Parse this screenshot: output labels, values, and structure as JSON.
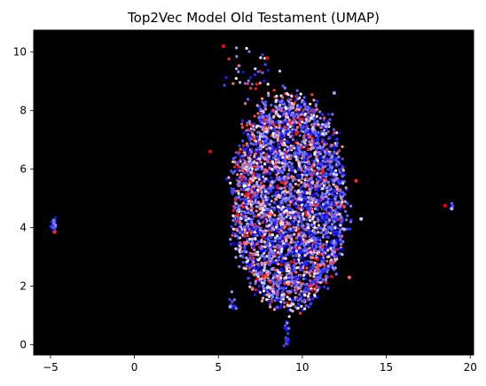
{
  "chart_data": {
    "type": "scatter",
    "title": "Top2Vec Model Old Testament (UMAP)",
    "xlabel": "",
    "ylabel": "",
    "xlim": [
      -6,
      20.2
    ],
    "ylim": [
      -0.35,
      10.75
    ],
    "grid": false,
    "legend": "none",
    "background_color": "#000000",
    "colormap": "bwr",
    "x_ticks": [
      -5,
      0,
      5,
      10,
      15,
      20
    ],
    "x_tick_labels": [
      "−5",
      "0",
      "5",
      "10",
      "15",
      "20"
    ],
    "y_ticks": [
      0,
      2,
      4,
      6,
      8,
      10
    ],
    "y_tick_labels": [
      "0",
      "2",
      "4",
      "6",
      "8",
      "10"
    ],
    "point_count": 4000,
    "clusters": [
      {
        "name": "main-cluster",
        "center": [
          9.2,
          4.9
        ],
        "spread": [
          1.8,
          2.0
        ],
        "share": 0.93
      },
      {
        "name": "left-outlier-group",
        "center": [
          -4.8,
          4.1
        ],
        "spread": [
          0.08,
          0.15
        ],
        "share": 0.006
      },
      {
        "name": "right-outlier-group",
        "center": [
          18.9,
          4.7
        ],
        "spread": [
          0.06,
          0.05
        ],
        "share": 0.002
      },
      {
        "name": "bottom-tail",
        "center": [
          9.1,
          0.3
        ],
        "spread": [
          0.08,
          0.3
        ],
        "share": 0.004
      },
      {
        "name": "lower-left-strand",
        "center": [
          5.8,
          1.4
        ],
        "spread": [
          0.15,
          0.15
        ],
        "share": 0.003
      },
      {
        "name": "top-stragglers",
        "center": [
          6.9,
          9.2
        ],
        "spread": [
          0.8,
          0.4
        ],
        "share": 0.01
      }
    ],
    "sample_points": [
      {
        "x": 5.3,
        "y": 10.2,
        "c": "#ff0000"
      },
      {
        "x": 7.9,
        "y": 9.8,
        "c": "#ff0000"
      },
      {
        "x": 13.2,
        "y": 5.6,
        "c": "#ff2a2a"
      },
      {
        "x": 13.5,
        "y": 4.3,
        "c": "#ccccff"
      },
      {
        "x": 18.5,
        "y": 4.75,
        "c": "#ff0000"
      },
      {
        "x": 18.9,
        "y": 4.65,
        "c": "#aab2ff"
      },
      {
        "x": -4.75,
        "y": 3.85,
        "c": "#ff2020"
      },
      {
        "x": -4.8,
        "y": 4.25,
        "c": "#6f6fff"
      },
      {
        "x": 9.1,
        "y": 0.2,
        "c": "#3030ff"
      },
      {
        "x": 9.0,
        "y": 0.6,
        "c": "#2020ff"
      },
      {
        "x": 10.5,
        "y": 1.4,
        "c": "#3a3aff"
      },
      {
        "x": 5.7,
        "y": 1.3,
        "c": "#a0a0ff"
      },
      {
        "x": 4.5,
        "y": 6.6,
        "c": "#ff0000"
      },
      {
        "x": 12.8,
        "y": 2.3,
        "c": "#ff6060"
      },
      {
        "x": 11.9,
        "y": 8.6,
        "c": "#9f9fff"
      }
    ]
  }
}
